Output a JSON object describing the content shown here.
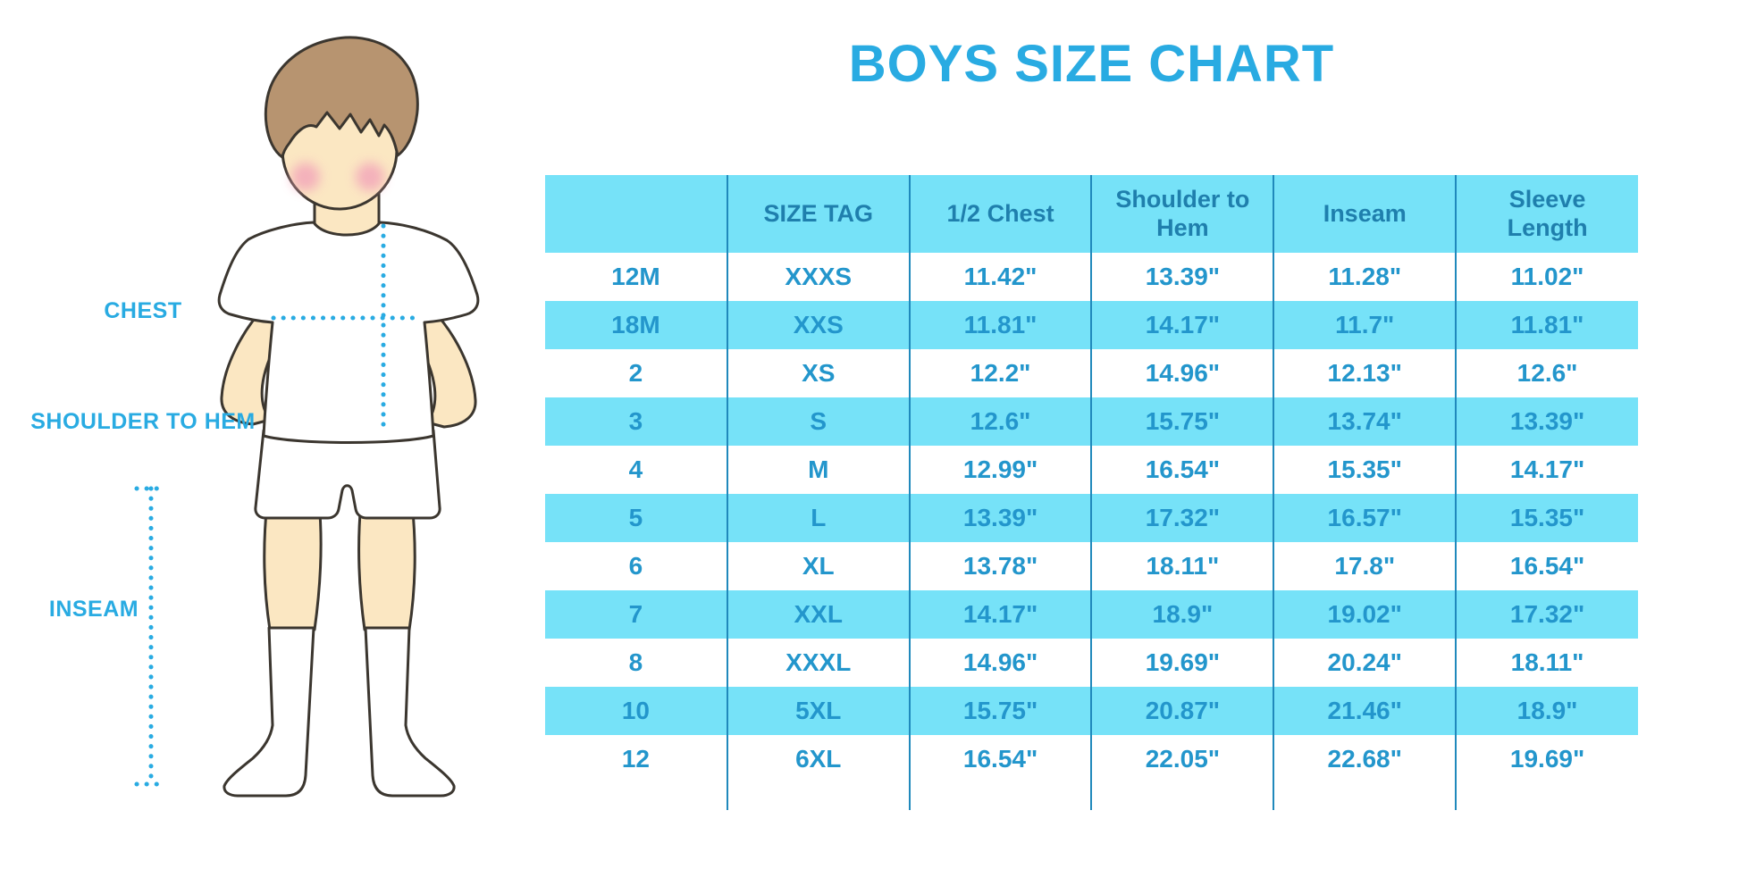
{
  "title": "BOYS SIZE CHART",
  "illustration": {
    "description": "boy wearing white t-shirt, shorts and knee socks with dotted measurement guides",
    "labels": {
      "chest": "CHEST",
      "shoulder_to_hem": "SHOULDER TO HEM",
      "inseam": "INSEAM"
    }
  },
  "colors": {
    "accent_blue": "#29ABE2",
    "table_band_cyan": "#76E2F8",
    "header_text_blue": "#1F7FAD",
    "cell_text_blue": "#2396CC",
    "divider_blue": "#2089BC",
    "skin": "#FBE7C2",
    "hair": "#B79470",
    "cheek": "#F3A8BA"
  },
  "table": {
    "headers": [
      "",
      "SIZE TAG",
      "1/2 Chest",
      "Shoulder to Hem",
      "Inseam",
      "Sleeve Length"
    ],
    "rows": [
      [
        "12M",
        "XXXS",
        "11.42\"",
        "13.39\"",
        "11.28\"",
        "11.02\""
      ],
      [
        "18M",
        "XXS",
        "11.81\"",
        "14.17\"",
        "11.7\"",
        "11.81\""
      ],
      [
        "2",
        "XS",
        "12.2\"",
        "14.96\"",
        "12.13\"",
        "12.6\""
      ],
      [
        "3",
        "S",
        "12.6\"",
        "15.75\"",
        "13.74\"",
        "13.39\""
      ],
      [
        "4",
        "M",
        "12.99\"",
        "16.54\"",
        "15.35\"",
        "14.17\""
      ],
      [
        "5",
        "L",
        "13.39\"",
        "17.32\"",
        "16.57\"",
        "15.35\""
      ],
      [
        "6",
        "XL",
        "13.78\"",
        "18.11\"",
        "17.8\"",
        "16.54\""
      ],
      [
        "7",
        "XXL",
        "14.17\"",
        "18.9\"",
        "19.02\"",
        "17.32\""
      ],
      [
        "8",
        "XXXL",
        "14.96\"",
        "19.69\"",
        "20.24\"",
        "18.11\""
      ],
      [
        "10",
        "5XL",
        "15.75\"",
        "20.87\"",
        "21.46\"",
        "18.9\""
      ],
      [
        "12",
        "6XL",
        "16.54\"",
        "22.05\"",
        "22.68\"",
        "19.69\""
      ]
    ]
  }
}
